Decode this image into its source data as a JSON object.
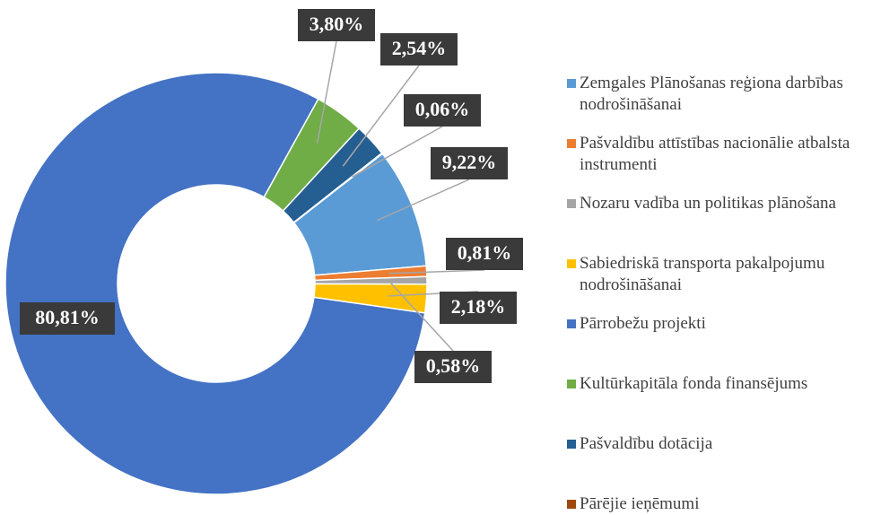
{
  "chart_data": {
    "type": "donut",
    "categories": [
      "Zemgales Plānošanas reģiona darbības nodrošināšanai",
      "Pašvaldību attīstības nacionālie atbalsta instrumenti",
      "Nozaru vadība un politikas plānošana",
      "Sabiedriskā transporta pakalpojumu nodrošināšanai",
      "Pārrobežu projekti",
      "Kultūrkapitāla fonda finansējums",
      "Pašvaldību dotācija",
      "Pārējie ieņēmumi"
    ],
    "values": [
      9.22,
      0.81,
      0.58,
      2.18,
      80.81,
      3.8,
      2.54,
      0.06
    ],
    "value_labels": [
      "9,22%",
      "0,81%",
      "0,58%",
      "2,18%",
      "80,81%",
      "3,80%",
      "2,54%",
      "0,06%"
    ],
    "colors": [
      "#5b9bd5",
      "#ed7d31",
      "#a5a5a5",
      "#ffc000",
      "#4472c4",
      "#70ad47",
      "#255e91",
      "#9e480e"
    ],
    "legend": "right"
  }
}
